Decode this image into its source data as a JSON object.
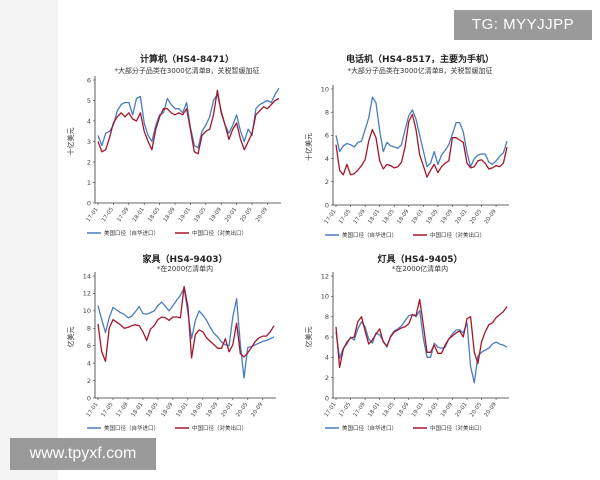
{
  "watermarks": {
    "top": "TG: MYYJJPP",
    "bottom": "www.tpyxf.com"
  },
  "colors": {
    "us": "#4a7cc0",
    "cn": "#a3162a",
    "axis": "#333333"
  },
  "legend": {
    "us": "美国口径（自华进口）",
    "cn": "中国口径（对美出口）"
  },
  "x_labels": [
    "17-01",
    "17-05",
    "17-09",
    "18-01",
    "18-05",
    "18-09",
    "19-01",
    "19-05",
    "19-09",
    "20-01",
    "20-05",
    "20-09"
  ],
  "chart_data": [
    {
      "type": "line",
      "title": "计算机（HS4-8471）",
      "subtitle": "*大部分子品类在3000亿清单B，关税暂缓加征",
      "ylabel": "十亿美元",
      "ylim": [
        0,
        6
      ],
      "yticks": [
        0,
        1,
        2,
        3,
        4,
        5,
        6
      ],
      "series": [
        {
          "name": "美国口径（自华进口）",
          "color": "#4a7cc0",
          "values": [
            3.3,
            2.8,
            3.4,
            3.5,
            3.8,
            4.5,
            4.8,
            4.9,
            4.9,
            4.3,
            5.1,
            5.2,
            3.9,
            3.3,
            3.0,
            3.8,
            4.3,
            4.4,
            5.1,
            4.8,
            4.6,
            4.6,
            4.4,
            4.9,
            3.7,
            2.8,
            2.7,
            3.5,
            3.8,
            4.2,
            5.0,
            5.3,
            4.5,
            3.8,
            3.4,
            3.8,
            4.3,
            3.5,
            3.0,
            3.6,
            3.3,
            4.6,
            4.8,
            4.9,
            5.0,
            4.9,
            5.3,
            5.6
          ]
        },
        {
          "name": "中国口径（对美出口）",
          "color": "#a3162a",
          "values": [
            3.0,
            2.5,
            2.6,
            3.2,
            3.9,
            4.2,
            4.4,
            4.2,
            4.4,
            4.1,
            4.0,
            4.4,
            3.5,
            3.0,
            2.6,
            3.6,
            4.2,
            4.6,
            4.6,
            4.4,
            4.3,
            4.4,
            4.3,
            4.6,
            3.6,
            2.5,
            2.4,
            3.3,
            3.5,
            3.6,
            4.3,
            5.5,
            4.4,
            3.8,
            3.1,
            3.6,
            3.9,
            3.1,
            2.6,
            3.0,
            3.4,
            4.3,
            4.5,
            4.7,
            4.6,
            4.8,
            5.0,
            5.1
          ]
        }
      ]
    },
    {
      "type": "line",
      "title": "电话机（HS4-8517，主要为手机）",
      "subtitle": "*大部分子品类在3000亿清单B，关税暂缓加征",
      "ylabel": "十亿美元",
      "ylim": [
        0,
        10
      ],
      "yticks": [
        0,
        2,
        4,
        6,
        8,
        10
      ],
      "series": [
        {
          "name": "美国口径（自华进口）",
          "color": "#4a7cc0",
          "values": [
            6.0,
            4.6,
            5.1,
            5.3,
            5.2,
            5.0,
            5.4,
            5.5,
            6.5,
            7.5,
            9.3,
            8.8,
            6.4,
            4.6,
            5.4,
            5.1,
            5.0,
            4.9,
            5.2,
            6.5,
            7.7,
            8.2,
            7.4,
            6.0,
            4.7,
            3.3,
            3.6,
            4.6,
            3.5,
            4.3,
            4.7,
            5.2,
            6.1,
            7.1,
            7.1,
            6.3,
            4.5,
            3.3,
            4.0,
            4.3,
            4.4,
            4.4,
            3.7,
            3.5,
            3.8,
            4.2,
            4.5,
            5.5
          ]
        },
        {
          "name": "中国口径（对美出口）",
          "color": "#a3162a",
          "values": [
            5.2,
            3.0,
            2.6,
            3.5,
            2.6,
            2.7,
            3.0,
            3.4,
            3.9,
            5.5,
            6.5,
            5.8,
            3.8,
            3.1,
            3.5,
            3.4,
            3.2,
            3.3,
            3.7,
            5.0,
            7.2,
            7.8,
            6.5,
            4.3,
            3.4,
            2.4,
            3.0,
            3.5,
            2.8,
            3.3,
            3.6,
            3.8,
            5.8,
            5.8,
            5.6,
            5.4,
            3.6,
            3.2,
            3.3,
            3.8,
            3.9,
            3.6,
            3.1,
            3.2,
            3.4,
            3.3,
            3.6,
            5.0
          ]
        }
      ]
    },
    {
      "type": "line",
      "title": "家具（HS4-9403）",
      "subtitle": "*在2000亿清单内",
      "ylabel": "亿美元",
      "ylim": [
        0,
        14
      ],
      "yticks": [
        0,
        2,
        4,
        6,
        8,
        10,
        12,
        14
      ],
      "series": [
        {
          "name": "美国口径（自华进口）",
          "color": "#4a7cc0",
          "values": [
            10.6,
            9.0,
            7.5,
            9.2,
            10.4,
            10.1,
            9.8,
            9.6,
            9.2,
            9.4,
            9.9,
            10.5,
            9.7,
            9.6,
            9.8,
            10.0,
            10.6,
            11.0,
            10.5,
            10.0,
            10.6,
            11.2,
            11.8,
            12.6,
            9.8,
            6.8,
            8.9,
            10.0,
            9.5,
            8.9,
            8.1,
            7.4,
            7.0,
            6.4,
            6.1,
            6.0,
            9.3,
            11.4,
            6.2,
            2.3,
            5.8,
            5.9,
            6.1,
            6.3,
            6.5,
            6.6,
            6.8,
            7.0
          ]
        },
        {
          "name": "中国口径（对美出口）",
          "color": "#a3162a",
          "values": [
            8.5,
            5.3,
            4.2,
            8.0,
            9.0,
            8.7,
            8.4,
            8.0,
            8.1,
            8.3,
            8.4,
            8.3,
            7.6,
            6.6,
            7.9,
            8.3,
            9.0,
            9.3,
            9.2,
            8.9,
            9.3,
            9.3,
            9.2,
            12.8,
            10.5,
            4.6,
            7.3,
            7.8,
            7.6,
            6.9,
            6.5,
            6.1,
            5.7,
            5.7,
            6.8,
            5.3,
            6.1,
            8.6,
            5.1,
            4.7,
            5.2,
            5.8,
            6.5,
            6.9,
            7.1,
            7.1,
            7.6,
            8.3
          ]
        }
      ]
    },
    {
      "type": "line",
      "title": "灯具（HS4-9405）",
      "subtitle": "*在2000亿清单内",
      "ylabel": "亿美元",
      "ylim": [
        0,
        12
      ],
      "yticks": [
        0,
        2,
        4,
        6,
        8,
        10,
        12
      ],
      "series": [
        {
          "name": "美国口径（自华进口）",
          "color": "#4a7cc0",
          "values": [
            6.5,
            3.9,
            4.9,
            5.3,
            6.0,
            5.7,
            6.8,
            7.5,
            7.0,
            5.8,
            5.4,
            6.4,
            6.2,
            5.6,
            5.0,
            6.1,
            6.6,
            6.8,
            7.1,
            7.6,
            8.1,
            8.2,
            8.0,
            8.6,
            5.9,
            4.0,
            4.0,
            5.4,
            5.0,
            4.9,
            5.0,
            5.8,
            6.3,
            6.7,
            6.7,
            6.4,
            7.4,
            3.1,
            1.5,
            4.1,
            4.5,
            4.7,
            4.9,
            5.3,
            5.5,
            5.3,
            5.2,
            5.0
          ]
        },
        {
          "name": "中国口径（对美出口）",
          "color": "#a3162a",
          "values": [
            7.0,
            3.0,
            4.8,
            5.5,
            5.9,
            6.0,
            7.5,
            8.0,
            6.6,
            5.3,
            5.7,
            6.3,
            6.8,
            5.5,
            5.1,
            6.0,
            6.5,
            6.7,
            6.9,
            7.0,
            7.3,
            8.2,
            8.1,
            9.7,
            7.2,
            4.5,
            4.5,
            5.2,
            4.4,
            4.4,
            5.2,
            5.8,
            6.1,
            6.4,
            6.6,
            6.0,
            7.8,
            8.0,
            4.5,
            3.4,
            5.5,
            6.5,
            7.2,
            7.4,
            7.9,
            8.2,
            8.5,
            9.0
          ]
        }
      ]
    }
  ]
}
